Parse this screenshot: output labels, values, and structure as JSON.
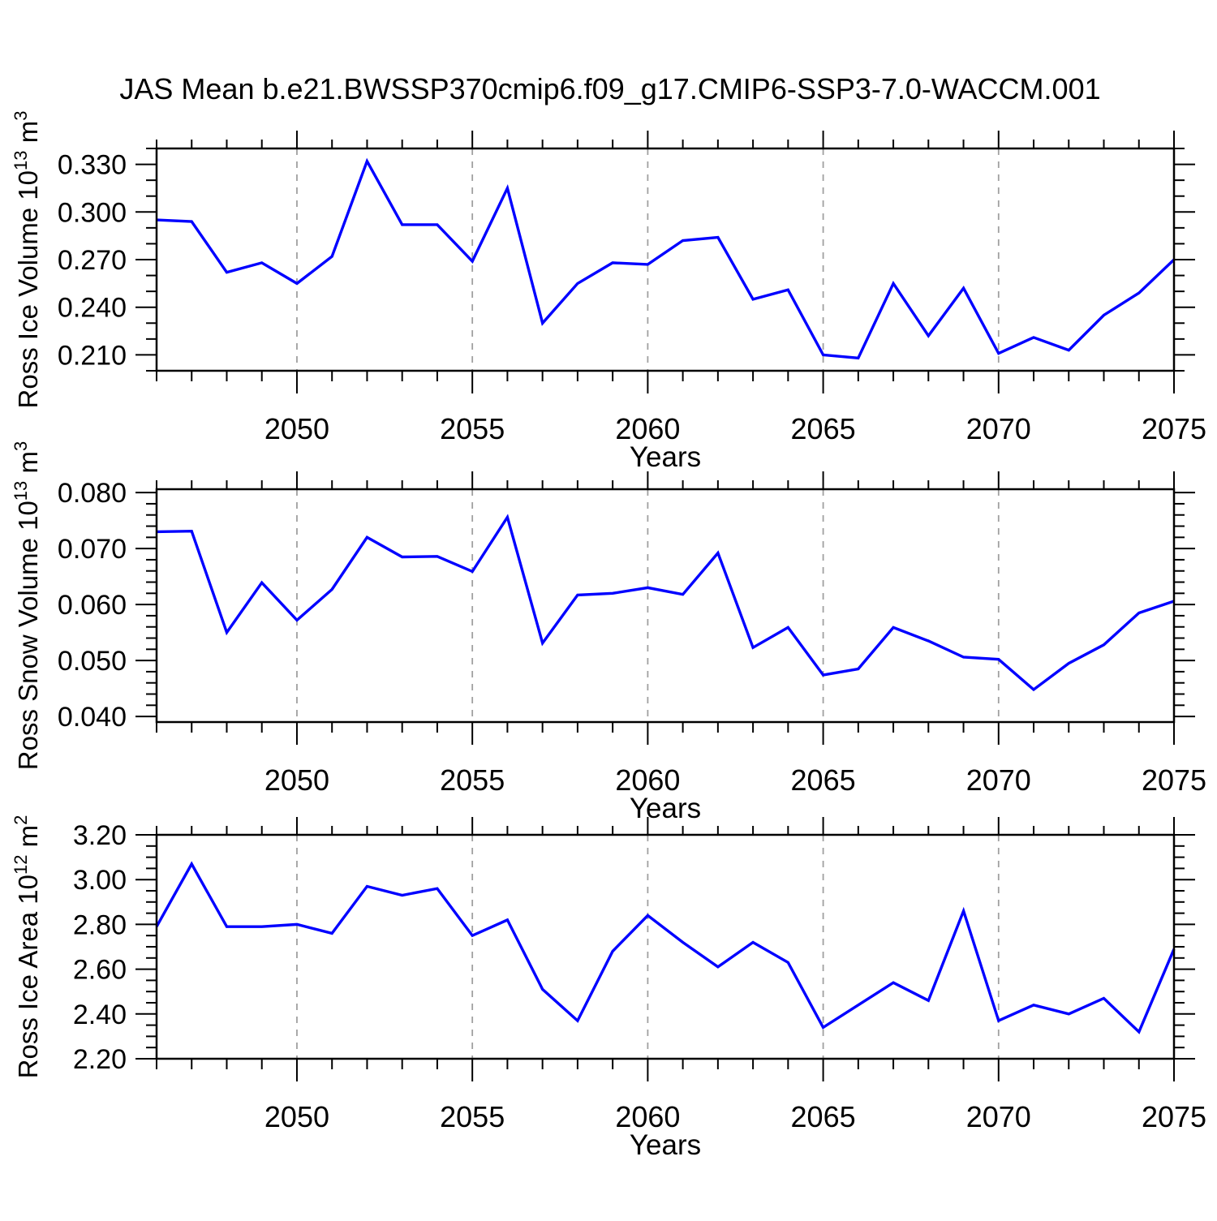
{
  "figure": {
    "title": "JAS Mean b.e21.BWSSP370cmip6.f09_g17.CMIP6-SSP3-7.0-WACCM.001",
    "background": "#ffffff",
    "line_color": "#0000ff",
    "grid_color": "#a0a0a0",
    "axis_color": "#000000"
  },
  "chart_data": [
    {
      "type": "line",
      "name": "ross-ice-volume",
      "ylabel_parts": [
        {
          "t": "Ross Ice Volume 10"
        },
        {
          "sup": "13"
        },
        {
          "t": " m"
        },
        {
          "sup": "3"
        }
      ],
      "xlabel": "Years",
      "x": [
        2046,
        2047,
        2048,
        2049,
        2050,
        2051,
        2052,
        2053,
        2054,
        2055,
        2056,
        2057,
        2058,
        2059,
        2060,
        2061,
        2062,
        2063,
        2064,
        2065,
        2066,
        2067,
        2068,
        2069,
        2070,
        2071,
        2072,
        2073,
        2074,
        2075
      ],
      "values": [
        0.295,
        0.294,
        0.262,
        0.268,
        0.255,
        0.272,
        0.332,
        0.292,
        0.292,
        0.269,
        0.315,
        0.23,
        0.255,
        0.268,
        0.267,
        0.282,
        0.284,
        0.245,
        0.251,
        0.21,
        0.208,
        0.255,
        0.222,
        0.252,
        0.211,
        0.221,
        0.213,
        0.235,
        0.249,
        0.27
      ],
      "xlim": [
        2046,
        2075
      ],
      "ylim": [
        0.2,
        0.34
      ],
      "xtick_major": [
        2050,
        2055,
        2060,
        2065,
        2070,
        2075
      ],
      "xtick_labels": [
        "2050",
        "2055",
        "2060",
        "2065",
        "2070",
        "2075"
      ],
      "xtick_minor_step": 1,
      "ytick_major": [
        0.21,
        0.24,
        0.27,
        0.3,
        0.33
      ],
      "ytick_labels": [
        "0.210",
        "0.240",
        "0.270",
        "0.300",
        "0.330"
      ],
      "ytick_minor_step": 0.01,
      "grid": "vertical dashed at major x ticks",
      "legend": "none"
    },
    {
      "type": "line",
      "name": "ross-snow-volume",
      "ylabel_parts": [
        {
          "t": "Ross Snow Volume 10"
        },
        {
          "sup": "13"
        },
        {
          "t": " m"
        },
        {
          "sup": "3"
        }
      ],
      "xlabel": "Years",
      "x": [
        2046,
        2047,
        2048,
        2049,
        2050,
        2051,
        2052,
        2053,
        2054,
        2055,
        2056,
        2057,
        2058,
        2059,
        2060,
        2061,
        2062,
        2063,
        2064,
        2065,
        2066,
        2067,
        2068,
        2069,
        2070,
        2071,
        2072,
        2073,
        2074,
        2075
      ],
      "values": [
        0.073,
        0.0731,
        0.055,
        0.0639,
        0.0572,
        0.0627,
        0.072,
        0.0685,
        0.0686,
        0.0659,
        0.0756,
        0.0531,
        0.0617,
        0.062,
        0.063,
        0.0618,
        0.0692,
        0.0523,
        0.0559,
        0.0474,
        0.0485,
        0.0559,
        0.0535,
        0.0506,
        0.0502,
        0.0448,
        0.0495,
        0.0528,
        0.0585,
        0.0606
      ],
      "xlim": [
        2046,
        2075
      ],
      "ylim": [
        0.039,
        0.0806
      ],
      "xtick_major": [
        2050,
        2055,
        2060,
        2065,
        2070,
        2075
      ],
      "xtick_labels": [
        "2050",
        "2055",
        "2060",
        "2065",
        "2070",
        "2075"
      ],
      "xtick_minor_step": 1,
      "ytick_major": [
        0.04,
        0.05,
        0.06,
        0.07,
        0.08
      ],
      "ytick_labels": [
        "0.040",
        "0.050",
        "0.060",
        "0.070",
        "0.080"
      ],
      "ytick_minor_step": 0.002,
      "grid": "vertical dashed at major x ticks",
      "legend": "none"
    },
    {
      "type": "line",
      "name": "ross-ice-area",
      "ylabel_parts": [
        {
          "t": "Ross Ice Area 10"
        },
        {
          "sup": "12"
        },
        {
          "t": " m"
        },
        {
          "sup": "2"
        }
      ],
      "xlabel": "Years",
      "x": [
        2046,
        2047,
        2048,
        2049,
        2050,
        2051,
        2052,
        2053,
        2054,
        2055,
        2056,
        2057,
        2058,
        2059,
        2060,
        2061,
        2062,
        2063,
        2064,
        2065,
        2066,
        2067,
        2068,
        2069,
        2070,
        2071,
        2072,
        2073,
        2074,
        2075
      ],
      "values": [
        2.79,
        3.07,
        2.79,
        2.79,
        2.8,
        2.76,
        2.97,
        2.93,
        2.96,
        2.75,
        2.82,
        2.51,
        2.37,
        2.68,
        2.84,
        2.72,
        2.61,
        2.72,
        2.63,
        2.34,
        2.44,
        2.54,
        2.46,
        2.86,
        2.37,
        2.44,
        2.4,
        2.47,
        2.32,
        2.69
      ],
      "xlim": [
        2046,
        2075
      ],
      "ylim": [
        2.2,
        3.2
      ],
      "xtick_major": [
        2050,
        2055,
        2060,
        2065,
        2070,
        2075
      ],
      "xtick_labels": [
        "2050",
        "2055",
        "2060",
        "2065",
        "2070",
        "2075"
      ],
      "xtick_minor_step": 1,
      "ytick_major": [
        2.2,
        2.4,
        2.6,
        2.8,
        3.0,
        3.2
      ],
      "ytick_labels": [
        "2.20",
        "2.40",
        "2.60",
        "2.80",
        "3.00",
        "3.20"
      ],
      "ytick_minor_step": 0.05,
      "grid": "vertical dashed at major x ticks",
      "legend": "none"
    }
  ]
}
